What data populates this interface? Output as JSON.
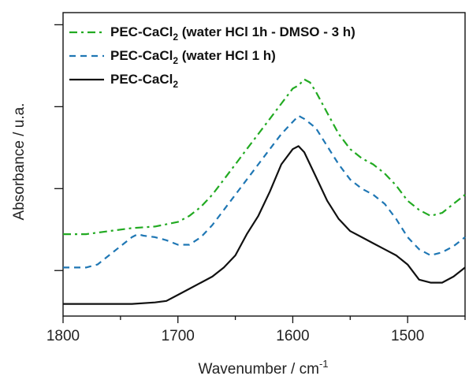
{
  "chart_data": {
    "type": "line",
    "title": "",
    "xlabel": "Wavenumber / cm",
    "xlabel_superscript": "-1",
    "ylabel": "Absorbance / u.a.",
    "xlim": [
      1800,
      1450
    ],
    "x_reversed": true,
    "ylim": [
      0,
      1
    ],
    "y_ticks_labeled": false,
    "x_ticks": [
      1800,
      1700,
      1600,
      1500
    ],
    "x_tick_labels": [
      "1800",
      "1700",
      "1600",
      "1500"
    ],
    "grid": false,
    "legend_position": "top-left",
    "series": [
      {
        "name": "PEC-CaCl",
        "name_subscript": "2",
        "name_suffix": " (water HCl 1h - DMSO - 3 h)",
        "color": "#22aa22",
        "dash": "dash-dot",
        "x": [
          1800,
          1780,
          1760,
          1740,
          1720,
          1700,
          1690,
          1680,
          1670,
          1660,
          1650,
          1640,
          1630,
          1620,
          1610,
          1600,
          1595,
          1590,
          1585,
          1580,
          1570,
          1560,
          1550,
          1540,
          1530,
          1520,
          1510,
          1500,
          1490,
          1480,
          1470,
          1460,
          1450
        ],
        "y": [
          0.27,
          0.27,
          0.28,
          0.29,
          0.295,
          0.31,
          0.33,
          0.36,
          0.4,
          0.45,
          0.5,
          0.55,
          0.6,
          0.65,
          0.7,
          0.75,
          0.76,
          0.78,
          0.77,
          0.74,
          0.67,
          0.6,
          0.55,
          0.52,
          0.5,
          0.47,
          0.43,
          0.38,
          0.35,
          0.33,
          0.34,
          0.37,
          0.4
        ]
      },
      {
        "name": "PEC-CaCl",
        "name_subscript": "2",
        "name_suffix": " (water HCl 1 h)",
        "color": "#1f77b4",
        "dash": "dashed",
        "x": [
          1800,
          1780,
          1770,
          1760,
          1750,
          1740,
          1735,
          1730,
          1720,
          1710,
          1700,
          1690,
          1680,
          1670,
          1660,
          1650,
          1640,
          1630,
          1620,
          1610,
          1600,
          1595,
          1590,
          1580,
          1570,
          1560,
          1550,
          1540,
          1530,
          1520,
          1510,
          1500,
          1490,
          1480,
          1470,
          1460,
          1450
        ],
        "y": [
          0.16,
          0.16,
          0.17,
          0.2,
          0.23,
          0.26,
          0.27,
          0.265,
          0.26,
          0.25,
          0.235,
          0.235,
          0.26,
          0.3,
          0.35,
          0.4,
          0.45,
          0.5,
          0.55,
          0.6,
          0.64,
          0.66,
          0.65,
          0.62,
          0.56,
          0.5,
          0.45,
          0.42,
          0.4,
          0.37,
          0.32,
          0.26,
          0.22,
          0.2,
          0.21,
          0.23,
          0.26
        ]
      },
      {
        "name": "PEC-CaCl",
        "name_subscript": "2",
        "name_suffix": "",
        "color": "#111111",
        "dash": "solid",
        "x": [
          1800,
          1780,
          1760,
          1740,
          1720,
          1710,
          1700,
          1690,
          1680,
          1670,
          1660,
          1650,
          1640,
          1630,
          1620,
          1610,
          1600,
          1595,
          1590,
          1580,
          1570,
          1560,
          1550,
          1540,
          1530,
          1520,
          1510,
          1500,
          1490,
          1480,
          1470,
          1460,
          1450
        ],
        "y": [
          0.04,
          0.04,
          0.04,
          0.04,
          0.045,
          0.05,
          0.07,
          0.09,
          0.11,
          0.13,
          0.16,
          0.2,
          0.27,
          0.33,
          0.41,
          0.5,
          0.55,
          0.56,
          0.54,
          0.46,
          0.38,
          0.32,
          0.28,
          0.26,
          0.24,
          0.22,
          0.2,
          0.17,
          0.12,
          0.11,
          0.11,
          0.13,
          0.16
        ]
      }
    ]
  }
}
